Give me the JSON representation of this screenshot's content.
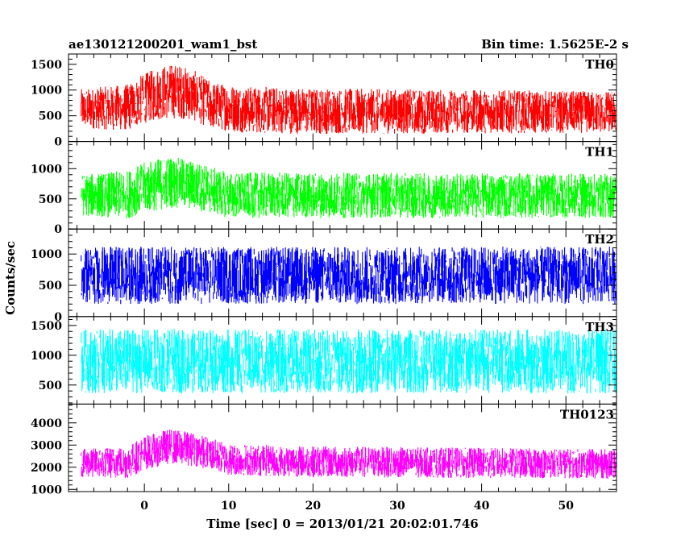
{
  "header": {
    "title": "ae130121200201_wam1_bst",
    "bin_time": "Bin time: 1.5625E-2 s"
  },
  "axes": {
    "ylabel": "Counts/sec",
    "xlabel": "Time [sec] 0 = 2013/01/21 20:02:01.746"
  },
  "chart_data": {
    "type": "line",
    "title": "ae130121200201_wam1_bst",
    "xlabel": "Time [sec] 0 = 2013/01/21 20:02:01.746",
    "ylabel": "Counts/sec",
    "xlim": [
      -9,
      56
    ],
    "x_ticks": [
      0,
      10,
      20,
      30,
      40,
      50
    ],
    "x_range": [
      -7.5,
      56
    ],
    "colors": {
      "TH0": "#ff0000",
      "TH1": "#00ff00",
      "TH2": "#0000ff",
      "TH3": "#00ffff",
      "TH0123": "#ff00ff"
    },
    "panels": [
      {
        "name": "TH0",
        "ylim": [
          0,
          1700
        ],
        "yticks": [
          0,
          500,
          1000,
          1500
        ],
        "baseline": [
          [
            -7.5,
            640
          ],
          [
            -2,
            660
          ],
          [
            0,
            840
          ],
          [
            2,
            950
          ],
          [
            4,
            980
          ],
          [
            6,
            880
          ],
          [
            8,
            700
          ],
          [
            12,
            620
          ],
          [
            20,
            590
          ],
          [
            40,
            580
          ],
          [
            56,
            570
          ]
        ],
        "spread": [
          [
            -7.5,
            330
          ],
          [
            0,
            420
          ],
          [
            3,
            470
          ],
          [
            8,
            400
          ],
          [
            56,
            350
          ]
        ]
      },
      {
        "name": "TH1",
        "ylim": [
          0,
          1450
        ],
        "yticks": [
          0,
          500,
          1000
        ],
        "baseline": [
          [
            -7.5,
            560
          ],
          [
            -2,
            570
          ],
          [
            0,
            690
          ],
          [
            3,
            780
          ],
          [
            6,
            720
          ],
          [
            10,
            560
          ],
          [
            56,
            550
          ]
        ],
        "spread": [
          [
            -7.5,
            300
          ],
          [
            2,
            380
          ],
          [
            10,
            330
          ],
          [
            56,
            320
          ]
        ]
      },
      {
        "name": "TH2",
        "ylim": [
          0,
          1400
        ],
        "yticks": [
          0,
          500,
          1000
        ],
        "baseline": [
          [
            -7.5,
            660
          ],
          [
            56,
            660
          ]
        ],
        "spread": [
          [
            -7.5,
            400
          ],
          [
            56,
            400
          ]
        ]
      },
      {
        "name": "TH3",
        "ylim": [
          180,
          1650
        ],
        "yticks": [
          500,
          1000,
          1500
        ],
        "baseline": [
          [
            -7.5,
            900
          ],
          [
            56,
            900
          ]
        ],
        "spread": [
          [
            -7.5,
            470
          ],
          [
            56,
            470
          ]
        ]
      },
      {
        "name": "TH0123",
        "ylim": [
          900,
          4850
        ],
        "yticks": [
          1000,
          2000,
          3000,
          4000
        ],
        "baseline": [
          [
            -7.5,
            2180
          ],
          [
            -2,
            2220
          ],
          [
            0,
            2650
          ],
          [
            3,
            2950
          ],
          [
            6,
            2800
          ],
          [
            10,
            2350
          ],
          [
            20,
            2250
          ],
          [
            56,
            2150
          ]
        ],
        "spread": [
          [
            -7.5,
            560
          ],
          [
            2,
            700
          ],
          [
            10,
            620
          ],
          [
            56,
            580
          ]
        ]
      }
    ]
  }
}
